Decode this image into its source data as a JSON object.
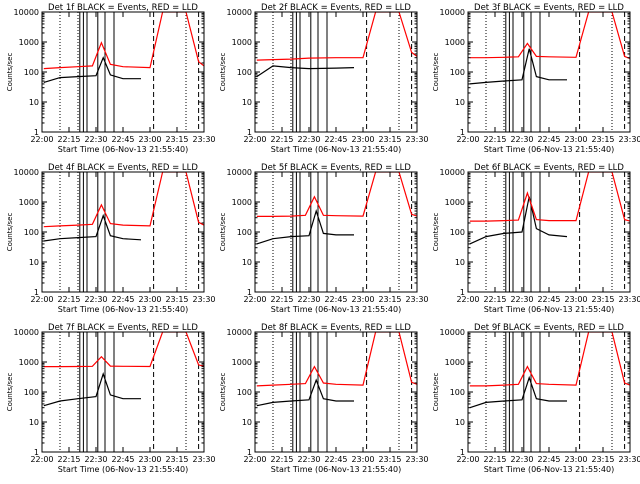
{
  "chart_data": [
    {
      "type": "line",
      "title": "Det 1f BLACK = Events, RED = LLD",
      "xlabel": "Start Time (06-Nov-13 21:55:40)",
      "ylabel": "Counts/sec",
      "yscale": "log",
      "ylim": [
        1,
        10000
      ],
      "xlim": [
        "22:00",
        "23:30"
      ],
      "xticks": [
        "22:00",
        "22:15",
        "22:30",
        "22:45",
        "23:00",
        "23:15",
        "23:30"
      ],
      "yticks": [
        "1",
        "10",
        "100",
        "1000",
        "10000"
      ],
      "series": [
        {
          "color": "#000000",
          "x": [
            "22:01",
            "22:10",
            "22:20",
            "22:30",
            "22:34",
            "22:38",
            "22:45",
            "22:55"
          ],
          "y": [
            45,
            65,
            70,
            75,
            300,
            80,
            60,
            60
          ]
        },
        {
          "color": "#ff0000",
          "x": [
            "22:01",
            "22:10",
            "22:20",
            "22:28",
            "22:33",
            "22:38",
            "22:45",
            "23:00",
            "23:07",
            "23:14",
            "23:20",
            "23:27",
            "23:30"
          ],
          "y": [
            130,
            140,
            150,
            160,
            950,
            180,
            150,
            140,
            10000,
            10000,
            10000,
            220,
            160
          ]
        }
      ],
      "markers": {
        "dotted": [
          "22:10",
          "22:20",
          "23:20",
          "23:30"
        ],
        "solid": [
          "22:21",
          "22:23",
          "22:25",
          "22:31",
          "22:35",
          "22:40"
        ],
        "dashed": [
          "23:02",
          "23:27"
        ]
      }
    },
    {
      "type": "line",
      "title": "Det 2f BLACK = Events, RED = LLD",
      "xlabel": "Start Time (06-Nov-13 21:55:40)",
      "ylabel": "Counts/sec",
      "yscale": "log",
      "ylim": [
        1,
        10000
      ],
      "xlim": [
        "22:00",
        "23:30"
      ],
      "xticks": [
        "22:00",
        "22:15",
        "22:30",
        "22:45",
        "23:00",
        "23:15",
        "23:30"
      ],
      "yticks": [
        "1",
        "10",
        "100",
        "1000",
        "10000"
      ],
      "series": [
        {
          "color": "#000000",
          "x": [
            "22:01",
            "22:10",
            "22:20",
            "22:30",
            "22:45",
            "22:55"
          ],
          "y": [
            70,
            160,
            140,
            130,
            135,
            140
          ]
        },
        {
          "color": "#ff0000",
          "x": [
            "22:01",
            "22:10",
            "22:20",
            "22:30",
            "22:45",
            "23:00",
            "23:07",
            "23:14",
            "23:20",
            "23:27",
            "23:30"
          ],
          "y": [
            250,
            260,
            270,
            290,
            300,
            300,
            10000,
            10000,
            10000,
            450,
            330
          ]
        }
      ],
      "markers": {
        "dotted": [
          "22:10",
          "22:20",
          "23:20",
          "23:30"
        ],
        "solid": [
          "22:21",
          "22:23",
          "22:25",
          "22:31",
          "22:35",
          "22:40"
        ],
        "dashed": [
          "23:02",
          "23:27"
        ]
      }
    },
    {
      "type": "line",
      "title": "Det 3f BLACK = Events, RED = LLD",
      "xlabel": "Start Time (06-Nov-13 21:55:40)",
      "ylabel": "Counts/sec",
      "yscale": "log",
      "ylim": [
        1,
        10000
      ],
      "xlim": [
        "22:00",
        "23:30"
      ],
      "xticks": [
        "22:00",
        "22:15",
        "22:30",
        "22:45",
        "23:00",
        "23:15",
        "23:30"
      ],
      "yticks": [
        "1",
        "10",
        "100",
        "1000",
        "10000"
      ],
      "series": [
        {
          "color": "#000000",
          "x": [
            "22:01",
            "22:10",
            "22:20",
            "22:30",
            "22:34",
            "22:38",
            "22:45",
            "22:55"
          ],
          "y": [
            40,
            45,
            50,
            55,
            600,
            70,
            55,
            55
          ]
        },
        {
          "color": "#ff0000",
          "x": [
            "22:01",
            "22:10",
            "22:20",
            "22:28",
            "22:33",
            "22:38",
            "22:45",
            "23:00",
            "23:07",
            "23:14",
            "23:20",
            "23:27",
            "23:30"
          ],
          "y": [
            300,
            300,
            310,
            320,
            900,
            330,
            320,
            310,
            10000,
            10000,
            10000,
            330,
            280
          ]
        }
      ],
      "markers": {
        "dotted": [
          "22:10",
          "22:20",
          "23:20",
          "23:30"
        ],
        "solid": [
          "22:21",
          "22:23",
          "22:25",
          "22:31",
          "22:35",
          "22:40"
        ],
        "dashed": [
          "23:02",
          "23:27"
        ]
      }
    },
    {
      "type": "line",
      "title": "Det 4f BLACK = Events, RED = LLD",
      "xlabel": "Start Time (06-Nov-13 21:55:40)",
      "ylabel": "Counts/sec",
      "yscale": "log",
      "ylim": [
        1,
        10000
      ],
      "xlim": [
        "22:00",
        "23:30"
      ],
      "xticks": [
        "22:00",
        "22:15",
        "22:30",
        "22:45",
        "23:00",
        "23:15",
        "23:30"
      ],
      "yticks": [
        "1",
        "10",
        "100",
        "1000",
        "10000"
      ],
      "series": [
        {
          "color": "#000000",
          "x": [
            "22:01",
            "22:10",
            "22:20",
            "22:30",
            "22:34",
            "22:38",
            "22:45",
            "22:55"
          ],
          "y": [
            50,
            60,
            65,
            70,
            350,
            75,
            60,
            55
          ]
        },
        {
          "color": "#ff0000",
          "x": [
            "22:01",
            "22:10",
            "22:20",
            "22:28",
            "22:33",
            "22:38",
            "22:45",
            "23:00",
            "23:07",
            "23:14",
            "23:20",
            "23:27",
            "23:30"
          ],
          "y": [
            150,
            160,
            170,
            180,
            800,
            190,
            170,
            160,
            10000,
            10000,
            10000,
            210,
            170
          ]
        }
      ],
      "markers": {
        "dotted": [
          "22:10",
          "22:20",
          "23:20",
          "23:30"
        ],
        "solid": [
          "22:21",
          "22:23",
          "22:25",
          "22:31",
          "22:35",
          "22:40"
        ],
        "dashed": [
          "23:02",
          "23:27"
        ]
      }
    },
    {
      "type": "line",
      "title": "Det 5f BLACK = Events, RED = LLD",
      "xlabel": "Start Time (06-Nov-13 21:55:40)",
      "ylabel": "Counts/sec",
      "yscale": "log",
      "ylim": [
        1,
        10000
      ],
      "xlim": [
        "22:00",
        "23:30"
      ],
      "xticks": [
        "22:00",
        "22:15",
        "22:30",
        "22:45",
        "23:00",
        "23:15",
        "23:30"
      ],
      "yticks": [
        "1",
        "10",
        "100",
        "1000",
        "10000"
      ],
      "series": [
        {
          "color": "#000000",
          "x": [
            "22:01",
            "22:10",
            "22:20",
            "22:30",
            "22:34",
            "22:38",
            "22:45",
            "22:55"
          ],
          "y": [
            40,
            60,
            70,
            75,
            500,
            90,
            80,
            80
          ]
        },
        {
          "color": "#ff0000",
          "x": [
            "22:01",
            "22:10",
            "22:20",
            "22:28",
            "22:33",
            "22:38",
            "22:45",
            "23:00",
            "23:07",
            "23:14",
            "23:20",
            "23:27",
            "23:30"
          ],
          "y": [
            330,
            330,
            340,
            360,
            1500,
            360,
            350,
            340,
            10000,
            10000,
            10000,
            390,
            340
          ]
        }
      ],
      "markers": {
        "dotted": [
          "22:10",
          "22:20",
          "23:20",
          "23:30"
        ],
        "solid": [
          "22:21",
          "22:23",
          "22:25",
          "22:31",
          "22:35",
          "22:40"
        ],
        "dashed": [
          "23:02",
          "23:27"
        ]
      }
    },
    {
      "type": "line",
      "title": "Det 6f BLACK = Events, RED = LLD",
      "xlabel": "Start Time (06-Nov-13 21:55:40)",
      "ylabel": "Counts/sec",
      "yscale": "log",
      "ylim": [
        1,
        10000
      ],
      "xlim": [
        "22:00",
        "23:30"
      ],
      "xticks": [
        "22:00",
        "22:15",
        "22:30",
        "22:45",
        "23:00",
        "23:15",
        "23:30"
      ],
      "yticks": [
        "1",
        "10",
        "100",
        "1000",
        "10000"
      ],
      "series": [
        {
          "color": "#000000",
          "x": [
            "22:01",
            "22:10",
            "22:20",
            "22:30",
            "22:34",
            "22:38",
            "22:45",
            "22:55"
          ],
          "y": [
            40,
            70,
            90,
            100,
            1500,
            130,
            80,
            70
          ]
        },
        {
          "color": "#ff0000",
          "x": [
            "22:01",
            "22:10",
            "22:20",
            "22:28",
            "22:33",
            "22:38",
            "22:45",
            "23:00",
            "23:07",
            "23:14",
            "23:20",
            "23:27",
            "23:30"
          ],
          "y": [
            230,
            230,
            240,
            250,
            2000,
            260,
            240,
            240,
            10000,
            10000,
            10000,
            260,
            230
          ]
        }
      ],
      "markers": {
        "dotted": [
          "22:10",
          "22:20",
          "23:20",
          "23:30"
        ],
        "solid": [
          "22:21",
          "22:23",
          "22:25",
          "22:31",
          "22:35",
          "22:40"
        ],
        "dashed": [
          "23:02",
          "23:27"
        ]
      }
    },
    {
      "type": "line",
      "title": "Det 7f BLACK = Events, RED = LLD",
      "xlabel": "Start Time (06-Nov-13 21:55:40)",
      "ylabel": "Counts/sec",
      "yscale": "log",
      "ylim": [
        1,
        10000
      ],
      "xlim": [
        "22:00",
        "23:30"
      ],
      "xticks": [
        "22:00",
        "22:15",
        "22:30",
        "22:45",
        "23:00",
        "23:15",
        "23:30"
      ],
      "yticks": [
        "1",
        "10",
        "100",
        "1000",
        "10000"
      ],
      "series": [
        {
          "color": "#000000",
          "x": [
            "22:01",
            "22:10",
            "22:20",
            "22:30",
            "22:34",
            "22:38",
            "22:45",
            "22:55"
          ],
          "y": [
            35,
            50,
            60,
            70,
            400,
            80,
            60,
            60
          ]
        },
        {
          "color": "#ff0000",
          "x": [
            "22:01",
            "22:10",
            "22:20",
            "22:28",
            "22:33",
            "22:38",
            "22:45",
            "23:00",
            "23:07",
            "23:14",
            "23:20",
            "23:27",
            "23:30"
          ],
          "y": [
            700,
            700,
            710,
            720,
            1500,
            730,
            720,
            710,
            10000,
            10000,
            10000,
            800,
            720
          ]
        }
      ],
      "markers": {
        "dotted": [
          "22:10",
          "22:20",
          "23:20",
          "23:30"
        ],
        "solid": [
          "22:21",
          "22:23",
          "22:25",
          "22:31",
          "22:35",
          "22:40"
        ],
        "dashed": [
          "23:02",
          "23:27"
        ]
      }
    },
    {
      "type": "line",
      "title": "Det 8f BLACK = Events, RED = LLD",
      "xlabel": "Start Time (06-Nov-13 21:55:40)",
      "ylabel": "Counts/sec",
      "yscale": "log",
      "ylim": [
        1,
        10000
      ],
      "xlim": [
        "22:00",
        "23:30"
      ],
      "xticks": [
        "22:00",
        "22:15",
        "22:30",
        "22:45",
        "23:00",
        "23:15",
        "23:30"
      ],
      "yticks": [
        "1",
        "10",
        "100",
        "1000",
        "10000"
      ],
      "series": [
        {
          "color": "#000000",
          "x": [
            "22:01",
            "22:10",
            "22:20",
            "22:30",
            "22:34",
            "22:38",
            "22:45",
            "22:55"
          ],
          "y": [
            35,
            45,
            50,
            55,
            250,
            60,
            50,
            50
          ]
        },
        {
          "color": "#ff0000",
          "x": [
            "22:01",
            "22:10",
            "22:20",
            "22:28",
            "22:33",
            "22:38",
            "22:45",
            "23:00",
            "23:07",
            "23:14",
            "23:20",
            "23:27",
            "23:30"
          ],
          "y": [
            160,
            170,
            180,
            190,
            700,
            200,
            180,
            170,
            10000,
            10000,
            10000,
            210,
            180
          ]
        }
      ],
      "markers": {
        "dotted": [
          "22:10",
          "22:20",
          "23:20",
          "23:30"
        ],
        "solid": [
          "22:21",
          "22:23",
          "22:25",
          "22:31",
          "22:35",
          "22:40"
        ],
        "dashed": [
          "23:02",
          "23:27"
        ]
      }
    },
    {
      "type": "line",
      "title": "Det 9f BLACK = Events, RED = LLD",
      "xlabel": "Start Time (06-Nov-13 21:55:40)",
      "ylabel": "Counts/sec",
      "yscale": "log",
      "ylim": [
        1,
        10000
      ],
      "xlim": [
        "22:00",
        "23:30"
      ],
      "xticks": [
        "22:00",
        "22:15",
        "22:30",
        "22:45",
        "23:00",
        "23:15",
        "23:30"
      ],
      "yticks": [
        "1",
        "10",
        "100",
        "1000",
        "10000"
      ],
      "series": [
        {
          "color": "#000000",
          "x": [
            "22:01",
            "22:10",
            "22:20",
            "22:30",
            "22:34",
            "22:38",
            "22:45",
            "22:55"
          ],
          "y": [
            30,
            45,
            50,
            55,
            300,
            60,
            50,
            50
          ]
        },
        {
          "color": "#ff0000",
          "x": [
            "22:01",
            "22:10",
            "22:20",
            "22:28",
            "22:33",
            "22:38",
            "22:45",
            "23:00",
            "23:07",
            "23:14",
            "23:20",
            "23:27",
            "23:30"
          ],
          "y": [
            160,
            160,
            170,
            180,
            700,
            190,
            180,
            170,
            10000,
            10000,
            10000,
            200,
            170
          ]
        }
      ],
      "markers": {
        "dotted": [
          "22:10",
          "22:20",
          "23:20",
          "23:30"
        ],
        "solid": [
          "22:21",
          "22:23",
          "22:25",
          "22:31",
          "22:35",
          "22:40"
        ],
        "dashed": [
          "23:02",
          "23:27"
        ]
      }
    }
  ]
}
